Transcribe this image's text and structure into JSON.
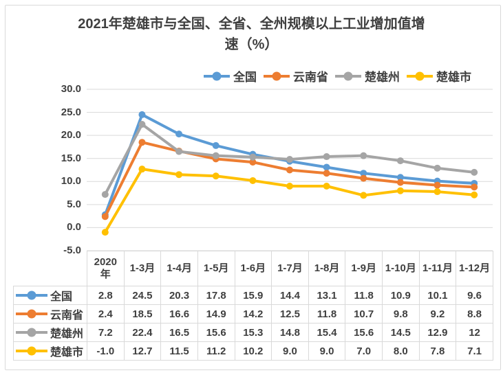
{
  "title_lines": {
    "0": "2021年楚雄市与全国、全省、全州规模以上工业增加值增",
    "1": "速（%）"
  },
  "chart_data": {
    "type": "line",
    "title": "2021年楚雄市与全国、全省、全州规模以上工业增加值增速（%）",
    "categories": [
      "2020年",
      "1-3月",
      "1-4月",
      "1-5月",
      "1-6月",
      "1-7月",
      "1-8月",
      "1-9月",
      "1-10月",
      "1-11月",
      "1-12月"
    ],
    "series": [
      {
        "name": "全国",
        "color": "#5B9BD5",
        "values": [
          "2.8",
          "24.5",
          "20.3",
          "17.8",
          "15.9",
          "14.4",
          "13.1",
          "11.8",
          "10.9",
          "10.1",
          "9.6"
        ]
      },
      {
        "name": "云南省",
        "color": "#ED7D31",
        "values": [
          "2.4",
          "18.5",
          "16.6",
          "14.9",
          "14.2",
          "12.5",
          "11.8",
          "10.7",
          "9.8",
          "9.2",
          "8.8"
        ]
      },
      {
        "name": "楚雄州",
        "color": "#A5A5A5",
        "values": [
          "7.2",
          "22.4",
          "16.5",
          "15.6",
          "15.3",
          "14.8",
          "15.4",
          "15.6",
          "14.5",
          "12.9",
          "12"
        ]
      },
      {
        "name": "楚雄市",
        "color": "#FFC000",
        "values": [
          "-1.0",
          "12.7",
          "11.5",
          "11.2",
          "10.2",
          "9.0",
          "9.0",
          "7.0",
          "8.0",
          "7.8",
          "7.1"
        ]
      }
    ],
    "ylim": [
      -5,
      30
    ],
    "yticks": [
      "30.0",
      "25.0",
      "20.0",
      "15.0",
      "10.0",
      "5.0",
      "0.0",
      "-5.0"
    ],
    "grid": true,
    "legend_position": "top",
    "data_table_attached": true
  },
  "colors": {
    "grid": "#d9d9d9",
    "border": "#d9d9d9",
    "text": "#3f3f3f"
  }
}
